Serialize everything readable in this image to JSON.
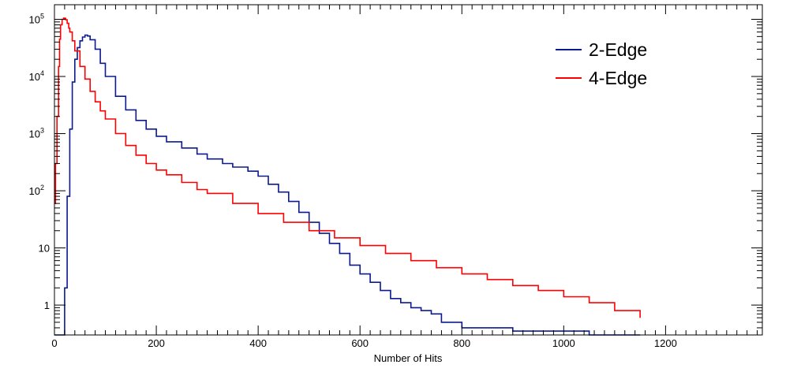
{
  "chart_data": {
    "type": "line",
    "title": "",
    "xlabel": "Number of Hits",
    "ylabel": "",
    "xlim": [
      0,
      1390
    ],
    "ylim": [
      0.3,
      180000
    ],
    "yscale": "log",
    "grid": false,
    "legend_position": "top-right",
    "x_ticks": [
      {
        "value": 0,
        "label": "0"
      },
      {
        "value": 200,
        "label": "200"
      },
      {
        "value": 400,
        "label": "400"
      },
      {
        "value": 600,
        "label": "600"
      },
      {
        "value": 800,
        "label": "800"
      },
      {
        "value": 1000,
        "label": "1000"
      },
      {
        "value": 1200,
        "label": "1200"
      }
    ],
    "y_ticks": [
      {
        "value": 1,
        "base": "1",
        "exp": ""
      },
      {
        "value": 10,
        "base": "10",
        "exp": ""
      },
      {
        "value": 100,
        "base": "10",
        "exp": "2"
      },
      {
        "value": 1000,
        "base": "10",
        "exp": "3"
      },
      {
        "value": 10000,
        "base": "10",
        "exp": "4"
      },
      {
        "value": 100000,
        "base": "10",
        "exp": "5"
      }
    ],
    "series": [
      {
        "name": "2-Edge",
        "color": "#0b1a8f",
        "x": [
          0,
          18,
          20,
          25,
          30,
          35,
          40,
          45,
          50,
          55,
          60,
          65,
          70,
          80,
          90,
          100,
          120,
          140,
          160,
          180,
          200,
          220,
          250,
          280,
          300,
          330,
          350,
          380,
          400,
          420,
          440,
          460,
          480,
          500,
          520,
          540,
          560,
          580,
          600,
          620,
          640,
          660,
          680,
          700,
          720,
          740,
          760,
          780,
          800,
          850,
          900,
          950,
          1000,
          1050,
          1100,
          1150
        ],
        "values": [
          0.3,
          0.3,
          2,
          80,
          1200,
          8000,
          20000,
          32000,
          42000,
          49000,
          53000,
          51000,
          44000,
          30000,
          17000,
          10000,
          4500,
          2600,
          1700,
          1200,
          900,
          720,
          560,
          440,
          360,
          300,
          260,
          220,
          180,
          130,
          95,
          65,
          42,
          28,
          18,
          12,
          8,
          5,
          3.5,
          2.5,
          1.8,
          1.3,
          1.1,
          0.9,
          0.8,
          0.7,
          0.5,
          0.5,
          0.4,
          0.4,
          0.35,
          0.35,
          0.35,
          0.3,
          0.3,
          0.3
        ]
      },
      {
        "name": "4-Edge",
        "color": "#ff0000",
        "x": [
          0,
          2,
          5,
          8,
          10,
          12,
          15,
          18,
          20,
          22,
          25,
          28,
          30,
          35,
          40,
          50,
          60,
          70,
          80,
          90,
          100,
          120,
          140,
          160,
          180,
          200,
          220,
          250,
          280,
          300,
          350,
          400,
          450,
          500,
          550,
          600,
          650,
          700,
          750,
          800,
          850,
          900,
          950,
          1000,
          1050,
          1100,
          1150
        ],
        "values": [
          60,
          300,
          2000,
          15000,
          45000,
          80000,
          100000,
          105000,
          104000,
          98000,
          85000,
          70000,
          60000,
          42000,
          28000,
          15000,
          9000,
          5500,
          3600,
          2500,
          1800,
          1000,
          620,
          420,
          300,
          230,
          190,
          140,
          105,
          90,
          60,
          40,
          28,
          20,
          15,
          11,
          8,
          6,
          4.5,
          3.5,
          2.8,
          2.2,
          1.8,
          1.4,
          1.1,
          0.8,
          0.6
        ]
      }
    ]
  }
}
